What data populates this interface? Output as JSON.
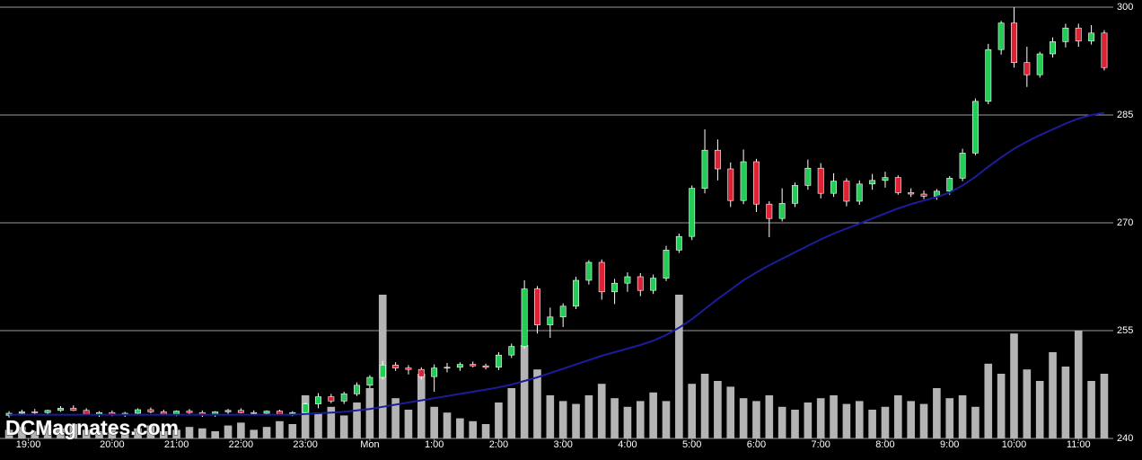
{
  "chart_data": {
    "type": "candlestick",
    "watermark": "DCMagnates.com",
    "ylim": [
      240,
      300
    ],
    "yticks": [
      240,
      255,
      270,
      285,
      300
    ],
    "grid": true,
    "xlim": [
      -0.7,
      85.7
    ],
    "xticks": [
      {
        "value": 1.5,
        "label": "19:00"
      },
      {
        "value": 8,
        "label": "20:00"
      },
      {
        "value": 13,
        "label": "21:00"
      },
      {
        "value": 18,
        "label": "22:00"
      },
      {
        "value": 23,
        "label": "23:00"
      },
      {
        "value": 28,
        "label": "Mon"
      },
      {
        "value": 33,
        "label": "1:00"
      },
      {
        "value": 38,
        "label": "2:00"
      },
      {
        "value": 43,
        "label": "3:00"
      },
      {
        "value": 48,
        "label": "4:00"
      },
      {
        "value": 53,
        "label": "5:00"
      },
      {
        "value": 58,
        "label": "6:00"
      },
      {
        "value": 63,
        "label": "7:00"
      },
      {
        "value": 68,
        "label": "8:00"
      },
      {
        "value": 73,
        "label": "9:00"
      },
      {
        "value": 78,
        "label": "10:00"
      },
      {
        "value": 83,
        "label": "11:00"
      }
    ],
    "up_color": "#22cc55",
    "down_color": "#dd2233",
    "ma_color": "#1c1c9c",
    "volume_color": "#b4b4b4",
    "open": [
      243.2,
      243.5,
      243.7,
      243.6,
      243.9,
      244.2,
      243.9,
      243.4,
      243.6,
      243.3,
      243.5,
      244.0,
      243.7,
      243.4,
      243.8,
      243.6,
      243.3,
      243.7,
      243.9,
      243.6,
      243.5,
      243.8,
      243.4,
      243.6,
      244.8,
      245.8,
      245.2,
      246.2,
      247.4,
      248.5,
      250.2,
      249.8,
      249.6,
      248.6,
      249.8,
      249.9,
      250.3,
      250.1,
      249.9,
      251.6,
      252.8,
      260.8,
      255.8,
      256.9,
      258.4,
      262.0,
      264.5,
      260.4,
      261.6,
      262.5,
      260.6,
      262.3,
      266.2,
      268.1,
      274.8,
      280.1,
      277.5,
      273.1,
      278.5,
      272.6,
      270.6,
      272.7,
      275.2,
      277.6,
      274.1,
      275.8,
      273.0,
      275.4,
      275.9,
      276.3,
      274.2,
      274.0,
      273.7,
      274.4,
      276.2,
      279.7,
      286.9,
      294.1,
      297.8,
      292.3,
      290.6,
      293.5,
      295.2,
      297.1,
      295.3,
      296.4
    ],
    "high": [
      243.8,
      244.0,
      244.1,
      244.0,
      244.5,
      244.6,
      244.2,
      243.8,
      243.9,
      243.7,
      244.2,
      244.3,
      244.0,
      243.9,
      244.1,
      243.9,
      243.8,
      244.1,
      244.2,
      243.9,
      243.9,
      244.0,
      243.8,
      245.0,
      246.3,
      246.2,
      246.5,
      247.8,
      248.8,
      250.8,
      250.6,
      250.2,
      249.9,
      250.3,
      250.5,
      250.6,
      250.7,
      250.4,
      252.0,
      253.2,
      262.0,
      261.2,
      258.2,
      258.8,
      262.5,
      264.8,
      264.9,
      262.2,
      263.1,
      263.0,
      262.8,
      266.8,
      268.5,
      275.2,
      283.0,
      281.6,
      278.4,
      280.2,
      278.9,
      273.0,
      274.8,
      275.6,
      278.8,
      278.3,
      276.9,
      276.2,
      275.9,
      276.8,
      277.1,
      276.6,
      274.8,
      274.5,
      274.7,
      276.5,
      280.3,
      287.3,
      294.9,
      298.1,
      300.0,
      294.5,
      293.8,
      295.8,
      297.7,
      297.7,
      297.5,
      296.8
    ],
    "low": [
      242.9,
      243.2,
      243.4,
      243.3,
      243.7,
      243.8,
      243.3,
      243.0,
      243.1,
      243.0,
      243.3,
      243.5,
      243.2,
      243.1,
      243.4,
      243.0,
      243.0,
      243.4,
      243.5,
      243.2,
      243.2,
      243.3,
      243.1,
      243.4,
      244.2,
      244.9,
      244.8,
      245.9,
      247.0,
      248.2,
      249.4,
      248.9,
      248.2,
      246.5,
      249.2,
      249.4,
      249.9,
      249.6,
      249.5,
      251.2,
      252.5,
      254.6,
      254.0,
      255.5,
      258.0,
      261.4,
      259.3,
      258.7,
      260.4,
      259.8,
      260.1,
      261.9,
      265.8,
      267.6,
      274.1,
      275.9,
      272.2,
      272.6,
      271.5,
      268.0,
      270.2,
      272.2,
      274.6,
      273.4,
      273.6,
      272.3,
      272.5,
      274.6,
      274.9,
      273.9,
      273.6,
      273.3,
      273.2,
      273.9,
      275.8,
      279.4,
      286.5,
      293.4,
      291.6,
      288.9,
      290.2,
      293.0,
      294.4,
      294.5,
      294.8,
      291.2
    ],
    "close": [
      243.5,
      243.7,
      243.6,
      243.9,
      244.2,
      243.9,
      243.4,
      243.6,
      243.3,
      243.5,
      244.0,
      243.7,
      243.4,
      243.8,
      243.6,
      243.3,
      243.7,
      243.9,
      243.6,
      243.5,
      243.8,
      243.4,
      243.6,
      244.8,
      245.8,
      245.2,
      246.2,
      247.4,
      248.5,
      250.2,
      249.8,
      249.6,
      248.6,
      249.8,
      249.9,
      250.3,
      250.1,
      249.9,
      251.6,
      252.8,
      260.8,
      255.8,
      256.9,
      258.4,
      262.0,
      264.5,
      260.4,
      261.6,
      262.5,
      260.6,
      262.3,
      266.2,
      268.1,
      274.8,
      280.1,
      277.5,
      273.1,
      278.5,
      272.6,
      270.6,
      272.7,
      275.2,
      277.6,
      274.1,
      275.8,
      273.0,
      275.4,
      275.9,
      276.3,
      274.2,
      274.0,
      273.7,
      274.4,
      276.2,
      279.7,
      286.9,
      294.1,
      297.8,
      292.3,
      290.6,
      293.5,
      295.2,
      297.1,
      295.3,
      296.4,
      291.6
    ],
    "volume": [
      6,
      8,
      5,
      9,
      7,
      10,
      6,
      5,
      8,
      4,
      7,
      9,
      5,
      6,
      8,
      7,
      5,
      9,
      11,
      6,
      8,
      12,
      10,
      30,
      18,
      22,
      16,
      25,
      35,
      100,
      28,
      20,
      45,
      22,
      18,
      14,
      12,
      10,
      25,
      35,
      65,
      48,
      30,
      26,
      24,
      30,
      38,
      28,
      22,
      26,
      32,
      26,
      100,
      38,
      45,
      40,
      36,
      28,
      26,
      30,
      22,
      20,
      25,
      28,
      30,
      24,
      26,
      20,
      22,
      30,
      26,
      24,
      35,
      28,
      30,
      22,
      52,
      45,
      73,
      48,
      40,
      60,
      50,
      75,
      40,
      45
    ],
    "moving_average": [
      243.3,
      243.3,
      243.3,
      243.3,
      243.3,
      243.3,
      243.3,
      243.3,
      243.3,
      243.3,
      243.3,
      243.3,
      243.3,
      243.3,
      243.3,
      243.3,
      243.3,
      243.3,
      243.3,
      243.3,
      243.3,
      243.3,
      243.3,
      243.4,
      243.5,
      243.6,
      243.7,
      243.9,
      244.1,
      244.4,
      244.7,
      245.0,
      245.3,
      245.6,
      245.9,
      246.2,
      246.5,
      246.8,
      247.1,
      247.5,
      248.0,
      248.5,
      249.1,
      249.7,
      250.3,
      250.9,
      251.5,
      252.0,
      252.5,
      253.0,
      253.6,
      254.4,
      255.4,
      256.6,
      258.0,
      259.4,
      260.7,
      262.0,
      263.1,
      264.1,
      265.0,
      265.9,
      266.8,
      267.7,
      268.5,
      269.2,
      269.9,
      270.6,
      271.3,
      272.0,
      272.6,
      273.1,
      273.6,
      274.2,
      275.2,
      276.4,
      277.8,
      279.1,
      280.3,
      281.3,
      282.2,
      283.0,
      283.8,
      284.5,
      285.0,
      285.3
    ]
  }
}
